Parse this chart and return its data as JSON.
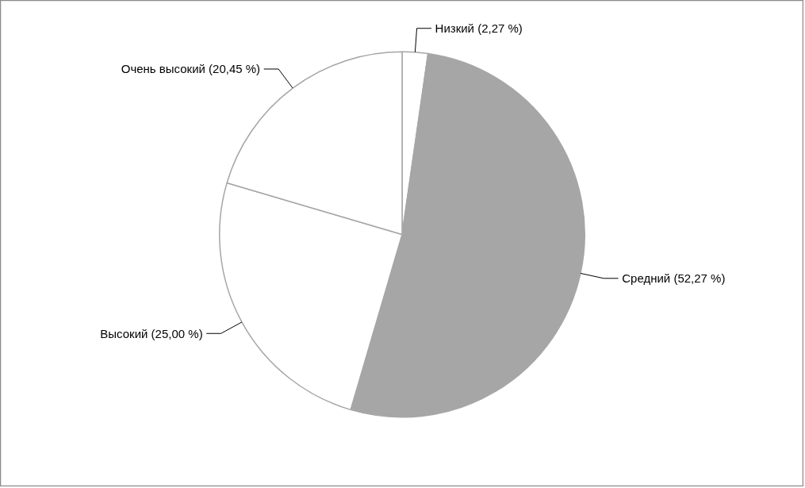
{
  "chart_data": {
    "type": "pie",
    "categories": [
      "Низкий",
      "Средний",
      "Высокий",
      "Очень высокий"
    ],
    "values": [
      2.27,
      52.27,
      25.0,
      20.45
    ],
    "value_labels": [
      "(2,27 %)",
      "(52,27 %)",
      "(25,00 %)",
      "(20,45 %)"
    ],
    "colors": [
      "#ffffff",
      "#a6a6a6",
      "#ffffff",
      "#ffffff"
    ],
    "legend": false
  }
}
